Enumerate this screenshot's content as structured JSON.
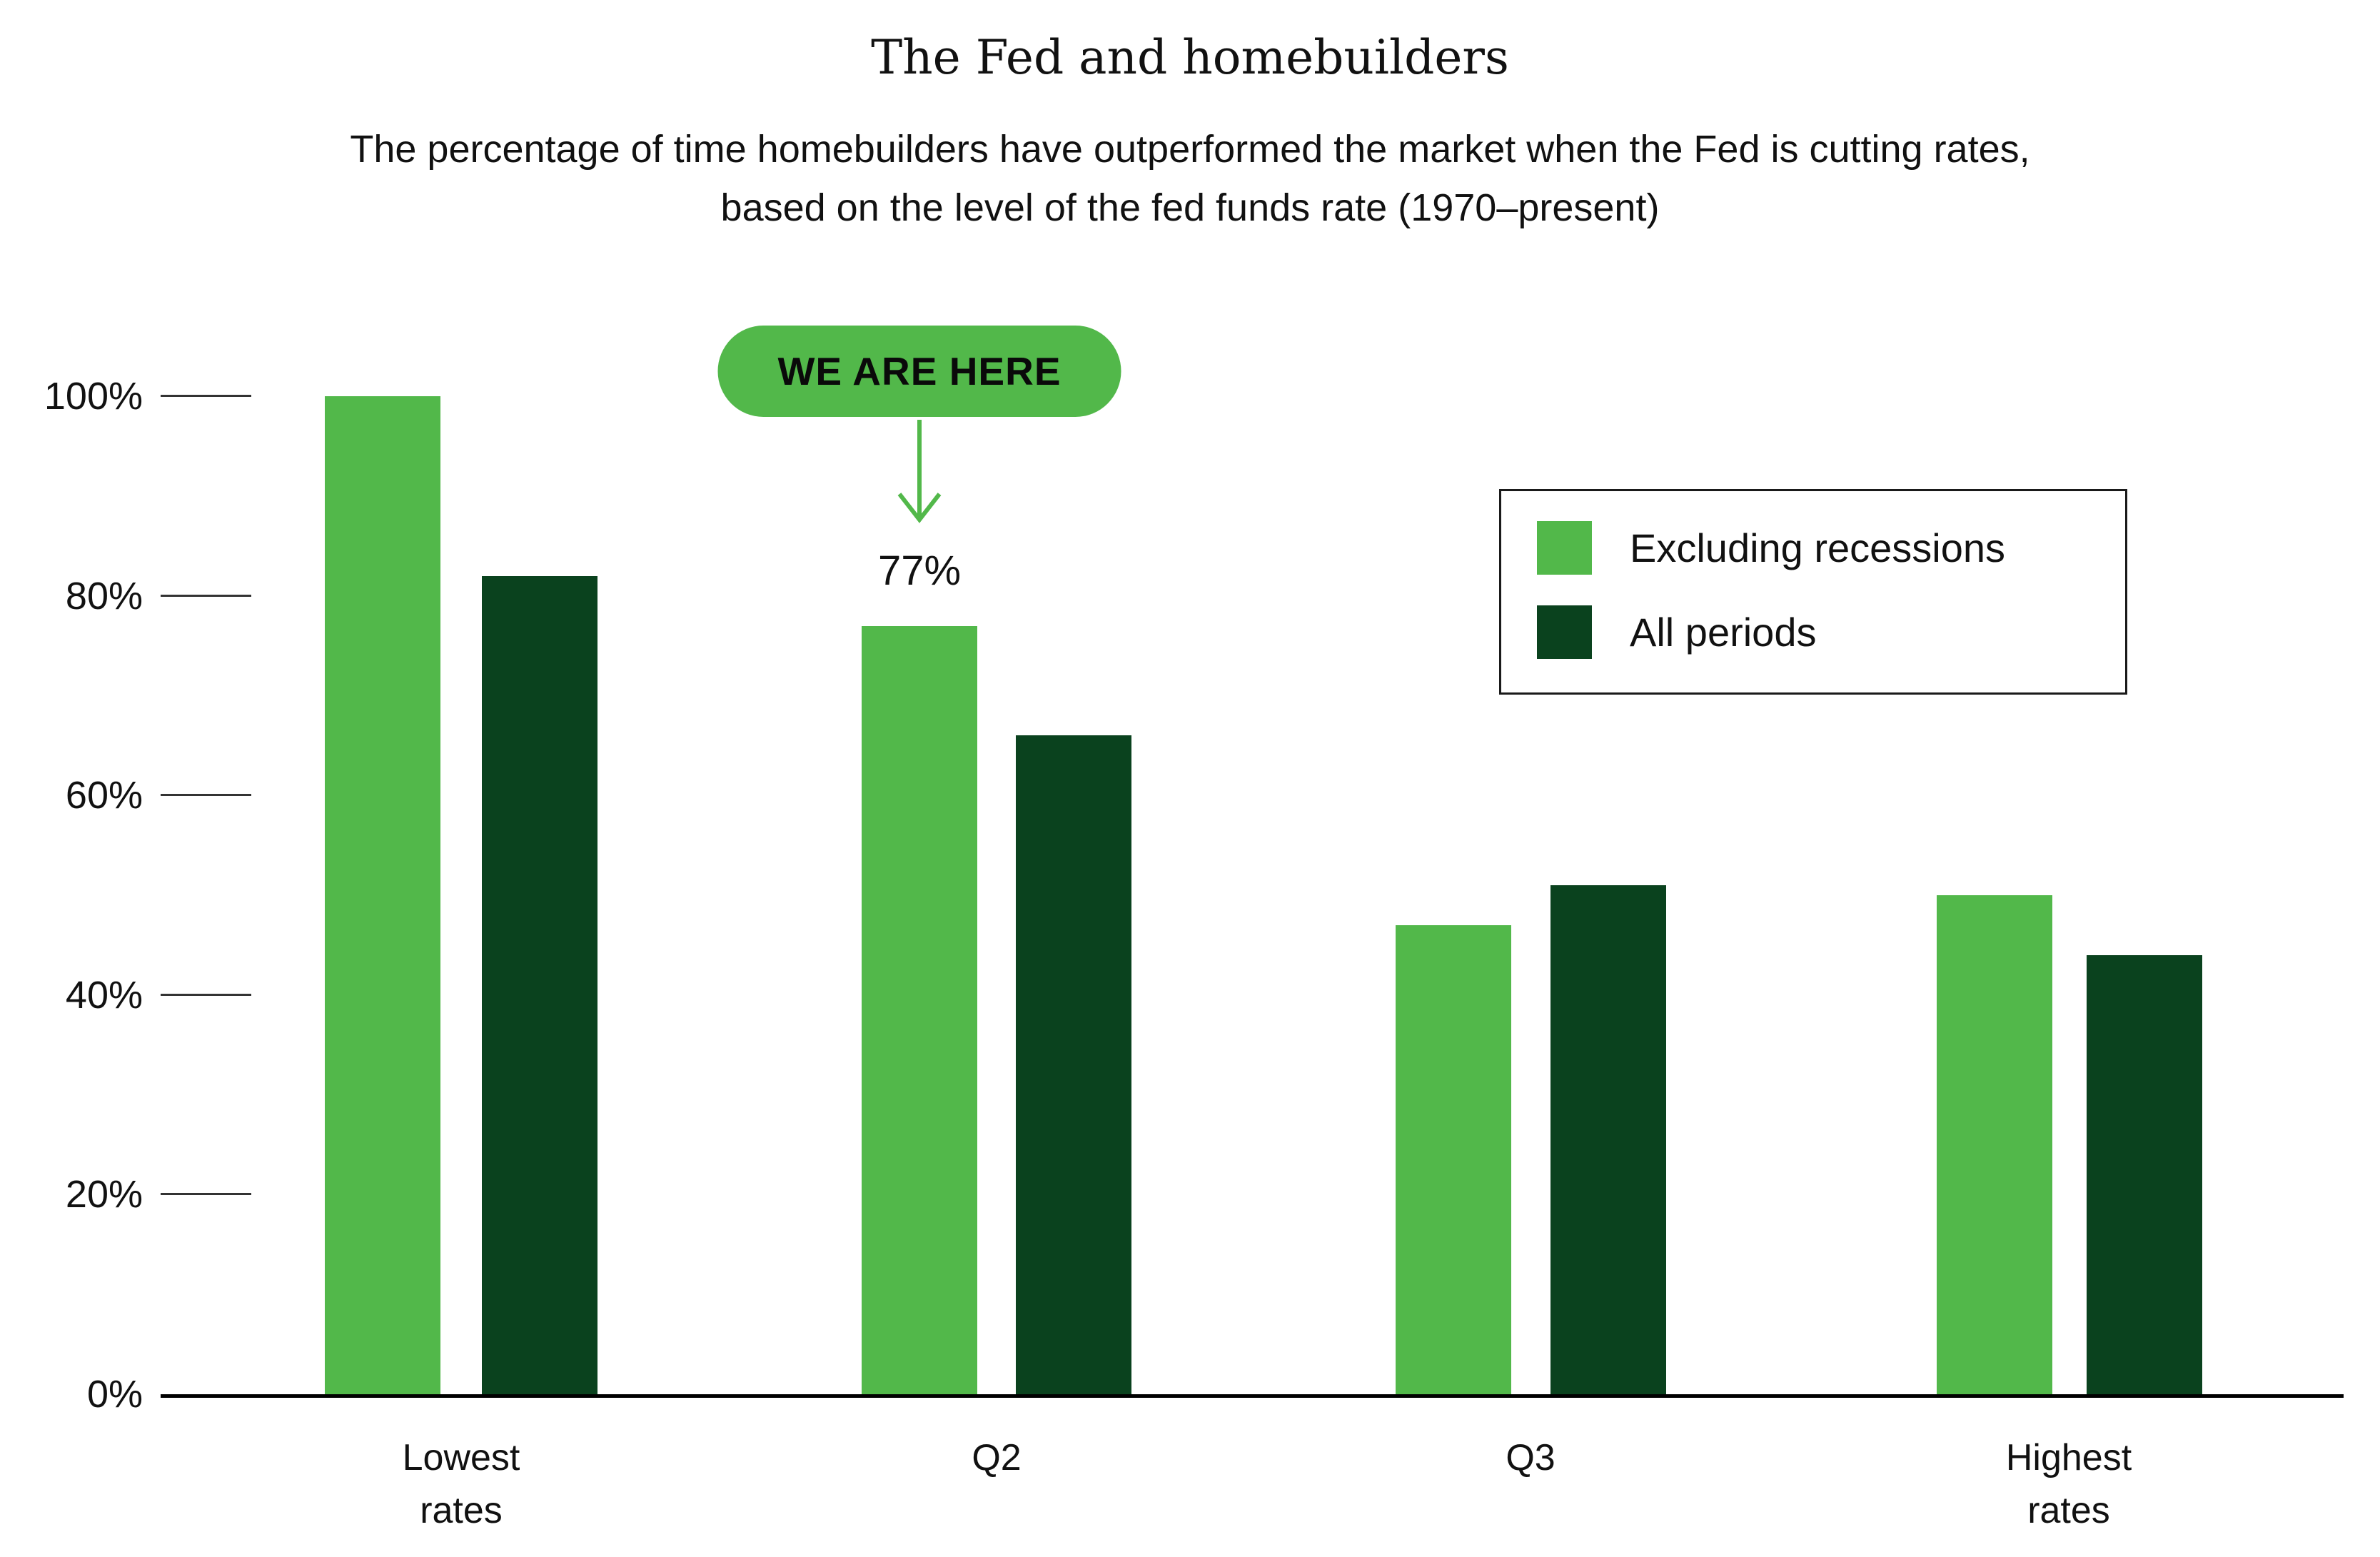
{
  "page": {
    "title": "The Fed and homebuilders",
    "subtitle_line1": "The percentage of time homebuilders have outperformed the market when the Fed is cutting rates,",
    "subtitle_line2": "based on the level of the fed funds rate (1970–present)"
  },
  "colors": {
    "series_light": "#52B84A",
    "series_dark": "#0A421E",
    "badge_bg": "#52B84A",
    "badge_text": "#0A0A0A",
    "axis": "#000000",
    "text": "#111111"
  },
  "legend": {
    "items": [
      {
        "label": "Excluding recessions",
        "color": "#52B84A"
      },
      {
        "label": "All periods",
        "color": "#0A421E"
      }
    ]
  },
  "chart_data": {
    "type": "bar",
    "title": "The Fed and homebuilders",
    "subtitle": "The percentage of time homebuilders have outperformed the market when the Fed is cutting rates, based on the level of the fed funds rate (1970–present)",
    "categories": [
      "Lowest\nrates",
      "Q2",
      "Q3",
      "Highest\nrates"
    ],
    "series": [
      {
        "name": "Excluding recessions",
        "color": "#52B84A",
        "values": [
          100,
          77,
          47,
          50
        ]
      },
      {
        "name": "All periods",
        "color": "#0A421E",
        "values": [
          82,
          66,
          51,
          44
        ]
      }
    ],
    "y_axis": {
      "ticks": [
        0,
        20,
        40,
        60,
        80,
        100
      ],
      "unit": "%",
      "range": [
        0,
        100
      ],
      "gridlines": false
    },
    "data_label": {
      "category_index": 1,
      "series_index": 0,
      "text": "77%"
    },
    "annotation": {
      "text": "WE ARE HERE",
      "target_category_index": 1,
      "target_series_index": 0
    },
    "legend_position": "right-top"
  }
}
